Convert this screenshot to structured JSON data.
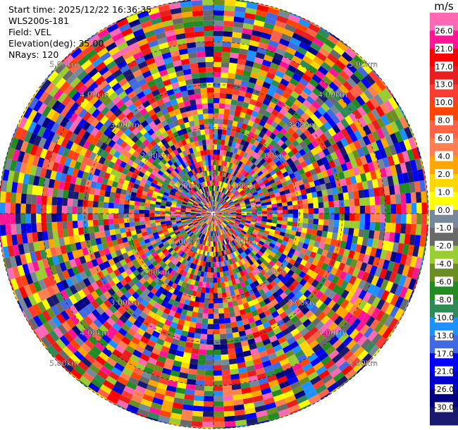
{
  "info": {
    "start_time": "Start time: 2025/12/22 16:36:35",
    "site": "WLS200s-181",
    "field": "Field: VEL",
    "elevation": "Elevation(deg): 35.00",
    "nrays": "NRays: 120"
  },
  "colorbar": {
    "unit": "m/s",
    "ticks": [
      "26.0",
      "21.0",
      "17.0",
      "13.0",
      "10.0",
      "8.0",
      "6.0",
      "4.0",
      "2.0",
      "1.0",
      "0.0",
      "-1.0",
      "-2.0",
      "-4.0",
      "-6.0",
      "-8.0",
      "-10.0",
      "-13.0",
      "-17.0",
      "-21.0",
      "-26.0",
      "-30.0"
    ],
    "colors": [
      "#ff69b4",
      "#ff1493",
      "#ff0000",
      "#e81d1d",
      "#ff3b30",
      "#ff4500",
      "#ff6347",
      "#ff7f50",
      "#ffa500",
      "#ffd700",
      "#ffff00",
      "#778899",
      "#696969",
      "#9acd32",
      "#6b8e23",
      "#228b22",
      "#2e8b57",
      "#1e90ff",
      "#4169e1",
      "#0000ff",
      "#0000cd",
      "#000080",
      "#191970"
    ]
  },
  "chart_data": {
    "type": "heatmap",
    "projection": "polar",
    "field": "VEL",
    "n_rays": 120,
    "range_rings_labels": [
      "1.00km",
      "2.00km",
      "3.00km",
      "4.00km",
      "5.00km"
    ],
    "range_rings_km": [
      1,
      2,
      3,
      4,
      5
    ],
    "max_range_km": 5.0
  }
}
